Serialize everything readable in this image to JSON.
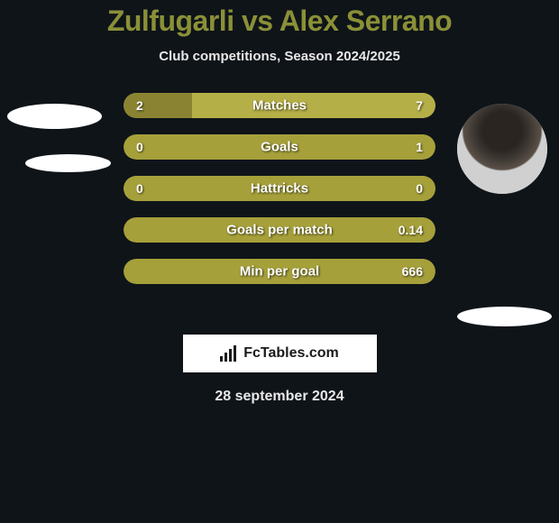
{
  "header": {
    "player1": "Zulfugarli",
    "vs": "vs",
    "player2": "Alex Serrano",
    "subtitle": "Club competitions, Season 2024/2025"
  },
  "colors": {
    "accent": "#8a9037",
    "bar_left": "#a6a03a",
    "bar_right": "#b0aa40",
    "bar_bg_full": "#a6a03a",
    "background": "#0f1419",
    "text_light": "#e8e8e8"
  },
  "stats": [
    {
      "label": "Matches",
      "left_value": "2",
      "right_value": "7",
      "left_pct_width": 22,
      "right_pct_width": 78,
      "left_color": "#8a8432",
      "right_color": "#b5af48"
    },
    {
      "label": "Goals",
      "left_value": "0",
      "right_value": "1",
      "left_pct_width": 0,
      "right_pct_width": 100,
      "left_color": "#8a8432",
      "right_color": "#a6a03a"
    },
    {
      "label": "Hattricks",
      "left_value": "0",
      "right_value": "0",
      "left_pct_width": 50,
      "right_pct_width": 50,
      "left_color": "#a6a03a",
      "right_color": "#a6a03a"
    },
    {
      "label": "Goals per match",
      "left_value": "",
      "right_value": "0.14",
      "left_pct_width": 0,
      "right_pct_width": 100,
      "left_color": "#8a8432",
      "right_color": "#a6a03a"
    },
    {
      "label": "Min per goal",
      "left_value": "",
      "right_value": "666",
      "left_pct_width": 0,
      "right_pct_width": 100,
      "left_color": "#8a8432",
      "right_color": "#a6a03a"
    }
  ],
  "branding": {
    "logo_text": "FcTables.com"
  },
  "footer": {
    "date": "28 september 2024"
  }
}
